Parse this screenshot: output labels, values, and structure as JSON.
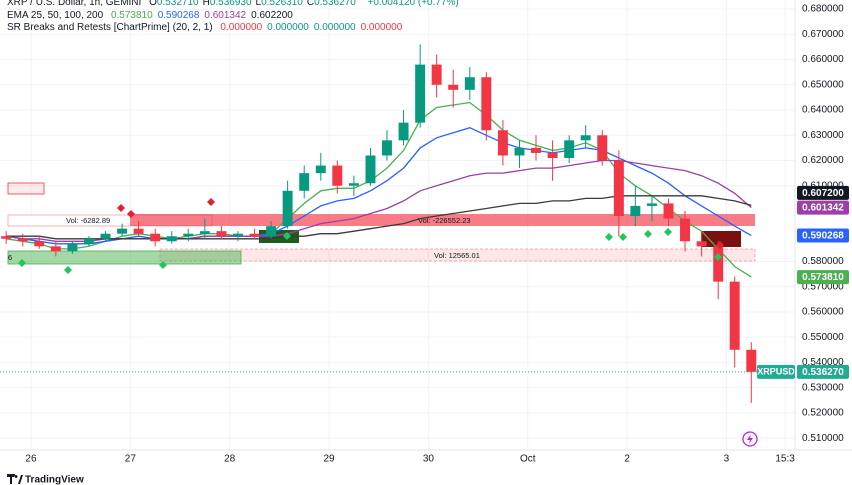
{
  "header": {
    "title": "XRP / U.S. Dollar, 1h, GEMINI",
    "ohlc": [
      {
        "key": "O",
        "value": "0.532710"
      },
      {
        "key": "H",
        "value": "0.536930"
      },
      {
        "key": "L",
        "value": "0.526310"
      },
      {
        "key": "C",
        "value": "0.536270"
      }
    ],
    "change": "+0.004120 (+0.77%)",
    "ema_title": "EMA 25, 50, 100, 200",
    "ema_values": [
      "0.573810",
      "0.590268",
      "0.601342",
      "0.602200"
    ],
    "sr_title": "SR Breaks and Retests [ChartPrime] (20, 2, 1)",
    "sr_values": [
      "0.000000",
      "0.000000",
      "0.000000",
      "0.000000"
    ]
  },
  "zones": {
    "resistance": "Vol: -226552.23",
    "box": "Vol: -6282.89",
    "support": "Vol: 12565.01",
    "green": "6"
  },
  "branding": "TradingView",
  "chart_data": {
    "type": "candlestick",
    "x": [
      -0.25,
      -0.083,
      0.083,
      0.25,
      0.417,
      0.583,
      0.75,
      0.917,
      1.083,
      1.25,
      1.417,
      1.583,
      1.75,
      1.917,
      2.083,
      2.25,
      2.417,
      2.583,
      2.75,
      2.917,
      3.083,
      3.25,
      3.417,
      3.583,
      3.75,
      3.917,
      4.083,
      4.25,
      4.417,
      4.583,
      4.75,
      4.917,
      5.083,
      5.25,
      5.417,
      5.583,
      5.75,
      5.917,
      6.083,
      6.25,
      6.417,
      6.583,
      6.75,
      6.917,
      7.083,
      7.25
    ],
    "open": [
      0.59,
      0.589,
      0.588,
      0.586,
      0.584,
      0.587,
      0.589,
      0.591,
      0.593,
      0.591,
      0.588,
      0.59,
      0.591,
      0.592,
      0.59,
      0.591,
      0.59,
      0.594,
      0.608,
      0.615,
      0.618,
      0.61,
      0.611,
      0.622,
      0.628,
      0.635,
      0.658,
      0.65,
      0.648,
      0.653,
      0.632,
      0.622,
      0.625,
      0.623,
      0.621,
      0.628,
      0.63,
      0.62,
      0.598,
      0.602,
      0.603,
      0.597,
      0.588,
      0.586,
      0.572,
      0.545
    ],
    "high": [
      0.592,
      0.591,
      0.59,
      0.588,
      0.588,
      0.59,
      0.592,
      0.595,
      0.596,
      0.593,
      0.592,
      0.593,
      0.597,
      0.594,
      0.592,
      0.593,
      0.596,
      0.612,
      0.618,
      0.623,
      0.62,
      0.614,
      0.625,
      0.632,
      0.64,
      0.666,
      0.662,
      0.656,
      0.657,
      0.655,
      0.636,
      0.628,
      0.63,
      0.628,
      0.63,
      0.634,
      0.632,
      0.624,
      0.61,
      0.606,
      0.605,
      0.6,
      0.592,
      0.588,
      0.574,
      0.548
    ],
    "low": [
      0.587,
      0.586,
      0.585,
      0.582,
      0.583,
      0.586,
      0.588,
      0.59,
      0.59,
      0.586,
      0.587,
      0.588,
      0.589,
      0.589,
      0.588,
      0.589,
      0.589,
      0.593,
      0.605,
      0.612,
      0.607,
      0.606,
      0.61,
      0.62,
      0.626,
      0.633,
      0.645,
      0.641,
      0.644,
      0.628,
      0.618,
      0.617,
      0.62,
      0.612,
      0.619,
      0.625,
      0.618,
      0.59,
      0.594,
      0.596,
      0.594,
      0.584,
      0.582,
      0.565,
      0.538,
      0.524
    ],
    "close": [
      0.589,
      0.588,
      0.586,
      0.584,
      0.587,
      0.589,
      0.591,
      0.593,
      0.591,
      0.588,
      0.59,
      0.591,
      0.592,
      0.59,
      0.591,
      0.59,
      0.594,
      0.608,
      0.615,
      0.618,
      0.61,
      0.611,
      0.622,
      0.628,
      0.635,
      0.658,
      0.65,
      0.648,
      0.653,
      0.632,
      0.622,
      0.625,
      0.623,
      0.621,
      0.628,
      0.63,
      0.62,
      0.598,
      0.602,
      0.603,
      0.597,
      0.588,
      0.586,
      0.572,
      0.545,
      0.53627
    ],
    "up_color": "#089981",
    "down_color": "#f23645",
    "series": [
      {
        "color": "#4caf50",
        "values": [
          0.589,
          0.588,
          0.587,
          0.585,
          0.585,
          0.586,
          0.588,
          0.59,
          0.591,
          0.59,
          0.589,
          0.59,
          0.591,
          0.591,
          0.59,
          0.59,
          0.591,
          0.597,
          0.603,
          0.608,
          0.609,
          0.609,
          0.612,
          0.617,
          0.624,
          0.636,
          0.641,
          0.642,
          0.643,
          0.638,
          0.632,
          0.628,
          0.626,
          0.624,
          0.625,
          0.627,
          0.624,
          0.615,
          0.61,
          0.606,
          0.601,
          0.596,
          0.592,
          0.585,
          0.578,
          0.57381
        ]
      },
      {
        "color": "#2962ff",
        "values": [
          0.59,
          0.589,
          0.588,
          0.587,
          0.587,
          0.587,
          0.588,
          0.589,
          0.59,
          0.589,
          0.589,
          0.589,
          0.59,
          0.59,
          0.59,
          0.59,
          0.591,
          0.594,
          0.598,
          0.602,
          0.604,
          0.605,
          0.608,
          0.612,
          0.617,
          0.625,
          0.629,
          0.631,
          0.633,
          0.63,
          0.627,
          0.625,
          0.624,
          0.623,
          0.624,
          0.625,
          0.624,
          0.621,
          0.618,
          0.615,
          0.611,
          0.606,
          0.602,
          0.598,
          0.594,
          0.590268
        ]
      },
      {
        "color": "#9c3fa6",
        "values": [
          0.59,
          0.589,
          0.589,
          0.588,
          0.588,
          0.588,
          0.589,
          0.589,
          0.589,
          0.589,
          0.589,
          0.589,
          0.59,
          0.59,
          0.59,
          0.59,
          0.59,
          0.591,
          0.593,
          0.595,
          0.596,
          0.597,
          0.599,
          0.601,
          0.604,
          0.608,
          0.61,
          0.612,
          0.614,
          0.615,
          0.615,
          0.616,
          0.617,
          0.617,
          0.618,
          0.619,
          0.62,
          0.62,
          0.619,
          0.618,
          0.617,
          0.616,
          0.614,
          0.611,
          0.607,
          0.601342
        ]
      },
      {
        "color": "#3a3a3a",
        "values": [
          0.59,
          0.59,
          0.59,
          0.589,
          0.589,
          0.589,
          0.589,
          0.589,
          0.589,
          0.589,
          0.589,
          0.589,
          0.589,
          0.589,
          0.589,
          0.589,
          0.589,
          0.59,
          0.59,
          0.591,
          0.591,
          0.592,
          0.593,
          0.594,
          0.595,
          0.597,
          0.598,
          0.599,
          0.6,
          0.601,
          0.602,
          0.603,
          0.603,
          0.604,
          0.604,
          0.605,
          0.605,
          0.606,
          0.606,
          0.606,
          0.606,
          0.606,
          0.606,
          0.605,
          0.604,
          0.6022
        ]
      }
    ],
    "xlim": [
      -0.312,
      7.69
    ],
    "ylim": [
      0.5053,
      0.6836
    ],
    "xticks": [
      {
        "value": 0,
        "label": "26"
      },
      {
        "value": 1,
        "label": "27"
      },
      {
        "value": 2,
        "label": "28"
      },
      {
        "value": 3,
        "label": "29"
      },
      {
        "value": 4,
        "label": "30"
      },
      {
        "value": 5,
        "label": "Oct"
      },
      {
        "value": 6,
        "label": "2"
      },
      {
        "value": 7,
        "label": "3"
      },
      {
        "value": 7.59,
        "label": "15:3"
      }
    ],
    "yticks": [
      {
        "value": 0.68,
        "label": "0.680000"
      },
      {
        "value": 0.67,
        "label": "0.670000"
      },
      {
        "value": 0.66,
        "label": "0.660000"
      },
      {
        "value": 0.65,
        "label": "0.650000"
      },
      {
        "value": 0.64,
        "label": "0.640000"
      },
      {
        "value": 0.63,
        "label": "0.630000"
      },
      {
        "value": 0.62,
        "label": "0.620000"
      },
      {
        "value": 0.61,
        "label": "0.610000"
      },
      {
        "value": 0.58,
        "label": "0.580000"
      },
      {
        "value": 0.57,
        "label": "0.570000"
      },
      {
        "value": 0.56,
        "label": "0.560000"
      },
      {
        "value": 0.55,
        "label": "0.550000"
      },
      {
        "value": 0.54,
        "label": "0.540000"
      },
      {
        "value": 0.53,
        "label": "0.530000"
      },
      {
        "value": 0.52,
        "label": "0.520000"
      },
      {
        "value": 0.51,
        "label": "0.510000"
      }
    ],
    "grid": true,
    "price_tags": [
      {
        "value": 0.6072,
        "label": "0.607200",
        "color": "#131722"
      },
      {
        "value": 0.601342,
        "label": "0.601342",
        "color": "#9c3fa6"
      },
      {
        "value": 0.590268,
        "label": "0.590268",
        "color": "#2962ff"
      },
      {
        "value": 0.57381,
        "label": "0.573810",
        "color": "#4caf50"
      },
      {
        "value": 0.53627,
        "label": "0.536270",
        "color": "#22ab94"
      }
    ],
    "symbol_tag": "XRPUSD"
  }
}
